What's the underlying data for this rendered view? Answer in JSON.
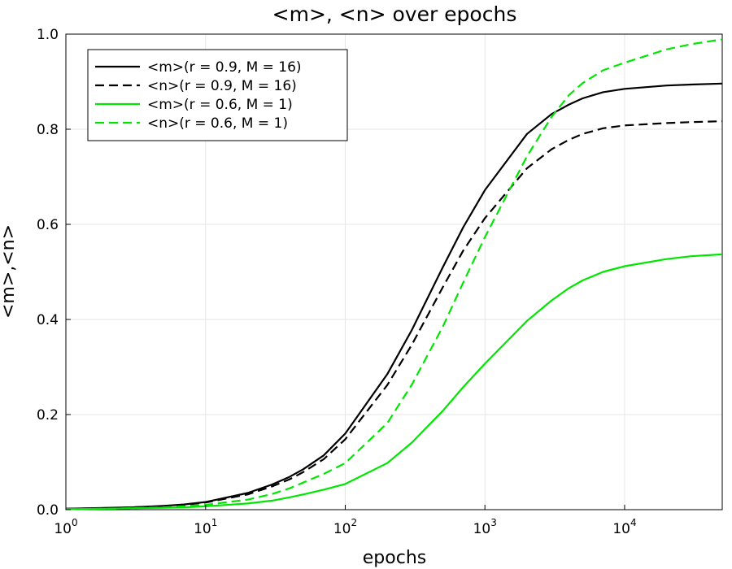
{
  "chart_data": {
    "type": "line",
    "title": "<m>, <n> over epochs",
    "xlabel": "epochs",
    "ylabel": "<m>,<n>",
    "x_scale": "log10",
    "xlim": [
      1,
      50000
    ],
    "ylim": [
      0,
      1.0
    ],
    "grid": true,
    "legend_position": "top-left",
    "x_ticks": [
      {
        "value": 1,
        "base": "10",
        "exp": "0"
      },
      {
        "value": 10,
        "base": "10",
        "exp": "1"
      },
      {
        "value": 100,
        "base": "10",
        "exp": "2"
      },
      {
        "value": 1000,
        "base": "10",
        "exp": "3"
      },
      {
        "value": 10000,
        "base": "10",
        "exp": "4"
      }
    ],
    "y_ticks": [
      {
        "value": 0.0,
        "label": "0.0"
      },
      {
        "value": 0.2,
        "label": "0.2"
      },
      {
        "value": 0.4,
        "label": "0.4"
      },
      {
        "value": 0.6,
        "label": "0.6"
      },
      {
        "value": 0.8,
        "label": "0.8"
      },
      {
        "value": 1.0,
        "label": "1.0"
      }
    ],
    "x": [
      1,
      2,
      3,
      5,
      7,
      10,
      20,
      30,
      40,
      50,
      70,
      100,
      200,
      300,
      500,
      700,
      1000,
      2000,
      3000,
      4000,
      5000,
      7000,
      10000,
      20000,
      30000,
      50000
    ],
    "series": [
      {
        "name": "<m>(r = 0.9, M = 16)",
        "color": "#000000",
        "dash": "solid",
        "values": [
          0.002,
          0.004,
          0.005,
          0.008,
          0.011,
          0.016,
          0.035,
          0.053,
          0.069,
          0.085,
          0.114,
          0.16,
          0.285,
          0.378,
          0.51,
          0.594,
          0.672,
          0.79,
          0.832,
          0.852,
          0.865,
          0.878,
          0.885,
          0.892,
          0.894,
          0.896
        ]
      },
      {
        "name": "<n>(r = 0.9, M = 16)",
        "color": "#000000",
        "dash": "dashed",
        "values": [
          0.002,
          0.003,
          0.005,
          0.007,
          0.01,
          0.015,
          0.032,
          0.049,
          0.064,
          0.079,
          0.106,
          0.148,
          0.262,
          0.347,
          0.468,
          0.545,
          0.613,
          0.718,
          0.758,
          0.778,
          0.79,
          0.802,
          0.808,
          0.813,
          0.815,
          0.817
        ]
      },
      {
        "name": "<m>(r = 0.6, M = 1)",
        "color": "#00e600",
        "dash": "solid",
        "values": [
          0.001,
          0.002,
          0.003,
          0.004,
          0.005,
          0.007,
          0.013,
          0.019,
          0.026,
          0.032,
          0.042,
          0.054,
          0.098,
          0.141,
          0.208,
          0.258,
          0.307,
          0.397,
          0.44,
          0.466,
          0.482,
          0.5,
          0.512,
          0.527,
          0.533,
          0.537
        ]
      },
      {
        "name": "<n>(r = 0.6, M = 1)",
        "color": "#00e600",
        "dash": "dashed",
        "values": [
          0.001,
          0.002,
          0.003,
          0.005,
          0.007,
          0.01,
          0.021,
          0.033,
          0.045,
          0.057,
          0.075,
          0.098,
          0.182,
          0.263,
          0.385,
          0.478,
          0.573,
          0.743,
          0.826,
          0.872,
          0.897,
          0.924,
          0.94,
          0.968,
          0.979,
          0.989
        ]
      }
    ]
  }
}
